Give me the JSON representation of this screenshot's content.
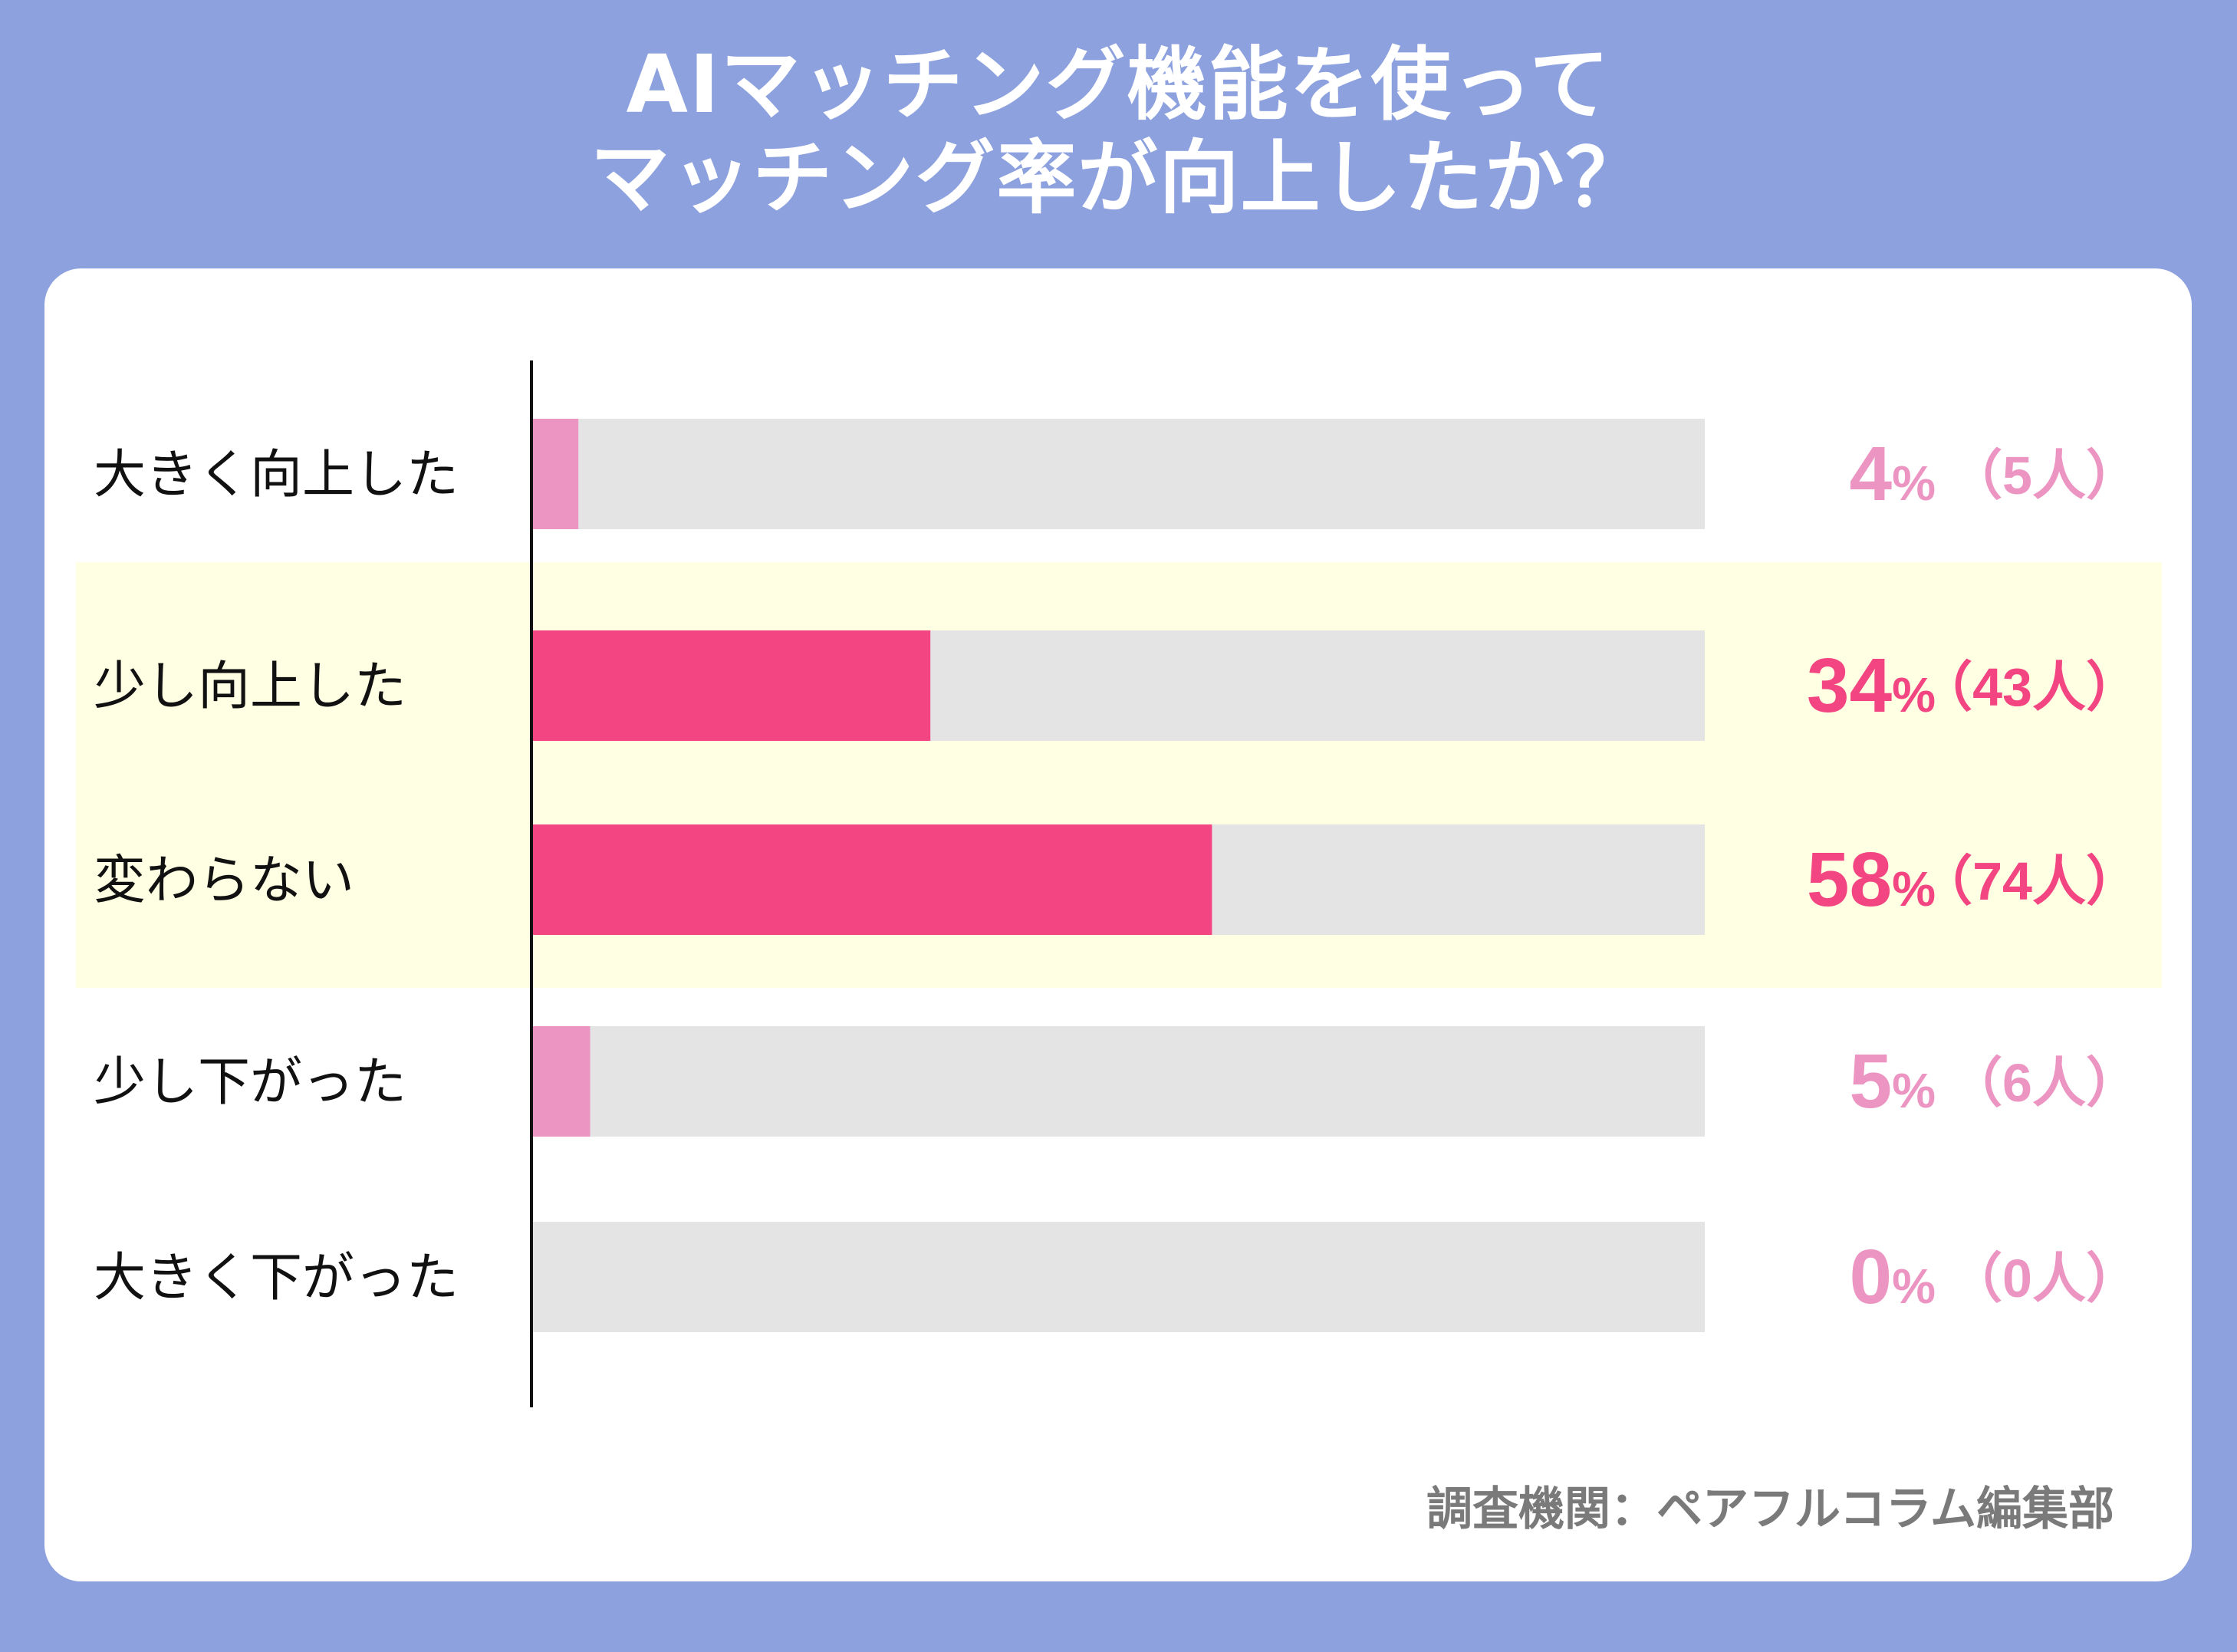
{
  "title": {
    "line1": "AIマッチング機能を使って",
    "line2": "マッチング率が向上したか？"
  },
  "source": "調査機関：ペアフルコラム編集部",
  "colors": {
    "background": "#8CA1DE",
    "card": "#FFFFFF",
    "highlight": "#FFFFE3",
    "track": "#E4E4E4",
    "strong": "#F24582",
    "light": "#EC94C2",
    "label": "#111111",
    "source": "#7A7A7A"
  },
  "chart_data": {
    "type": "bar",
    "orientation": "horizontal",
    "title": "AIマッチング機能を使って マッチング率が向上したか？",
    "categories": [
      "大きく向上した",
      "少し向上した",
      "変わらない",
      "少し下がった",
      "大きく下がった"
    ],
    "values": [
      4,
      34,
      58,
      5,
      0
    ],
    "counts": [
      5,
      43,
      74,
      6,
      0
    ],
    "percent_labels": [
      "4%",
      "34%",
      "58%",
      "5%",
      "0%"
    ],
    "count_labels": [
      "（5人）",
      "（43人）",
      "（74人）",
      "（6人）",
      "（0人）"
    ],
    "highlighted": [
      false,
      true,
      true,
      false,
      false
    ],
    "xlim": [
      0,
      100
    ],
    "unit": "%",
    "grid": false
  }
}
